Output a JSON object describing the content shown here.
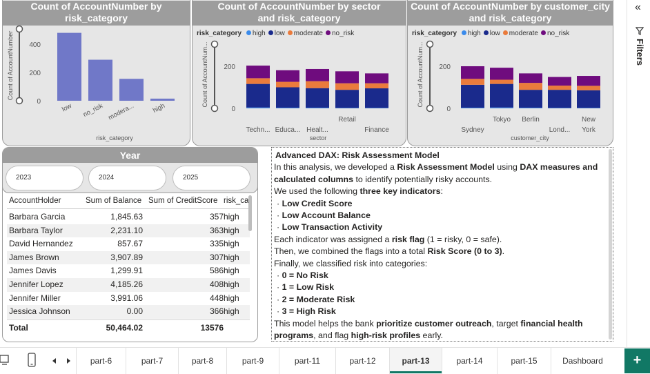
{
  "charts": {
    "risk": {
      "title": "Count of AccountNumber by risk_category",
      "ylabel": "Count of AccountNumber",
      "xlabel": "risk_category",
      "ticks": [
        "400",
        "200",
        "0"
      ],
      "categories": [
        "low",
        "no_risk",
        "modera...",
        "high"
      ]
    },
    "sector": {
      "title": "Count of AccountNumber by sector and risk_category",
      "legend_title": "risk_category",
      "ylabel": "Count of AccountNum...",
      "xlabel": "sector",
      "ticks": [
        "200",
        "0"
      ],
      "categories": [
        "Techn...",
        "Educa...",
        "Healt...",
        "Retail",
        "Finance"
      ]
    },
    "city": {
      "title": "Count of AccountNumber by customer_city and risk_category",
      "legend_title": "risk_category",
      "ylabel": "Count of AccountNum...",
      "xlabel": "customer_city",
      "ticks": [
        "200",
        "0"
      ],
      "categories": [
        "Sydney",
        "Tokyo",
        "Berlin",
        "Lond...",
        "New York"
      ],
      "cat_lines": [
        [
          "",
          "Sydney"
        ],
        [
          "Tokyo",
          ""
        ],
        [
          "Berlin",
          ""
        ],
        [
          "",
          "Lond..."
        ],
        [
          "New",
          "York"
        ]
      ]
    }
  },
  "legend": [
    {
      "label": "high",
      "color": "#3b8beb"
    },
    {
      "label": "low",
      "color": "#1a2a8c"
    },
    {
      "label": "moderate",
      "color": "#ea7b3c"
    },
    {
      "label": "no_risk",
      "color": "#6f0c7e"
    }
  ],
  "chart_data": [
    {
      "type": "bar",
      "title": "Count of AccountNumber by risk_category",
      "xlabel": "risk_category",
      "ylabel": "Count of AccountNumber",
      "categories": [
        "low",
        "no_risk",
        "modera...",
        "high"
      ],
      "values": [
        480,
        290,
        155,
        15
      ],
      "ylim": [
        0,
        500
      ],
      "color": "#7078c8"
    },
    {
      "type": "bar",
      "stacked": true,
      "title": "Count of AccountNumber by sector and risk_category",
      "xlabel": "sector",
      "ylabel": "Count of AccountNum...",
      "categories": [
        "Techn...",
        "Educa...",
        "Healt...",
        "Retail",
        "Finance"
      ],
      "ylim": [
        0,
        300
      ],
      "series": [
        {
          "name": "high",
          "values": [
            4,
            3,
            3,
            2,
            2
          ]
        },
        {
          "name": "low",
          "values": [
            112,
            97,
            93,
            86,
            93
          ]
        },
        {
          "name": "moderate",
          "values": [
            27,
            26,
            33,
            31,
            24
          ]
        },
        {
          "name": "no_risk",
          "values": [
            60,
            55,
            58,
            57,
            47
          ]
        }
      ]
    },
    {
      "type": "bar",
      "stacked": true,
      "title": "Count of AccountNumber by customer_city and risk_category",
      "xlabel": "customer_city",
      "ylabel": "Count of AccountNum...",
      "categories": [
        "Sydney",
        "Tokyo",
        "Berlin",
        "Lond...",
        "New York"
      ],
      "ylim": [
        0,
        300
      ],
      "series": [
        {
          "name": "high",
          "values": [
            3,
            4,
            3,
            2,
            2
          ]
        },
        {
          "name": "low",
          "values": [
            109,
            112,
            85,
            86,
            84
          ]
        },
        {
          "name": "moderate",
          "values": [
            28,
            20,
            33,
            20,
            21
          ]
        },
        {
          "name": "no_risk",
          "values": [
            60,
            57,
            45,
            41,
            47
          ]
        }
      ]
    }
  ],
  "slicer": {
    "title": "Year",
    "options": [
      "2023",
      "2024",
      "2025"
    ]
  },
  "table": {
    "headers": [
      "AccountHolder",
      "Sum of Balance",
      "Sum of CreditScore",
      "risk_ca"
    ],
    "rows": [
      [
        "Barbara Garcia",
        "1,845.63",
        "357",
        "high"
      ],
      [
        "Barbara Taylor",
        "2,231.10",
        "363",
        "high"
      ],
      [
        "David Hernandez",
        "857.67",
        "335",
        "high"
      ],
      [
        "James Brown",
        "3,907.89",
        "307",
        "high"
      ],
      [
        "James Davis",
        "1,299.91",
        "586",
        "high"
      ],
      [
        "Jennifer Lopez",
        "4,185.26",
        "408",
        "high"
      ],
      [
        "Jennifer Miller",
        "3,991.06",
        "448",
        "high"
      ],
      [
        "Jessica Johnson",
        "0.00",
        "366",
        "high"
      ]
    ],
    "total": [
      "Total",
      "50,464.02",
      "13576",
      ""
    ]
  },
  "textbox": {
    "title": "Advanced DAX: Risk Assessment Model",
    "lines": [
      [
        {
          "t": "In this analysis, we developed a "
        },
        {
          "t": "Risk Assessment Model",
          "b": true
        },
        {
          "t": " using "
        },
        {
          "t": "DAX measures and",
          "b": true
        }
      ],
      [
        {
          "t": "calculated columns",
          "b": true
        },
        {
          "t": " to identify potentially risky accounts."
        }
      ],
      [
        {
          "t": "We used the following "
        },
        {
          "t": "three key indicators",
          "b": true
        },
        {
          "t": ":"
        }
      ],
      [
        {
          "t": "· "
        },
        {
          "t": "Low Credit Score",
          "b": true
        }
      ],
      [
        {
          "t": "· "
        },
        {
          "t": "Low Account Balance",
          "b": true
        }
      ],
      [
        {
          "t": "· "
        },
        {
          "t": "Low Transaction Activity",
          "b": true
        }
      ],
      [
        {
          "t": "Each indicator was assigned a "
        },
        {
          "t": "risk flag",
          "b": true
        },
        {
          "t": " (1 = risky, 0 = safe)."
        }
      ],
      [
        {
          "t": "Then, we combined the flags into a total "
        },
        {
          "t": "Risk Score (0 to 3)",
          "b": true
        },
        {
          "t": "."
        }
      ],
      [
        {
          "t": "Finally, we classified risk into categories:"
        }
      ],
      [
        {
          "t": "· "
        },
        {
          "t": "0 = No Risk",
          "b": true
        }
      ],
      [
        {
          "t": "· "
        },
        {
          "t": "1 = Low Risk",
          "b": true
        }
      ],
      [
        {
          "t": "· "
        },
        {
          "t": "2 = Moderate Risk",
          "b": true
        }
      ],
      [
        {
          "t": "· "
        },
        {
          "t": "3 = High Risk",
          "b": true
        }
      ],
      [
        {
          "t": "This model helps the bank "
        },
        {
          "t": "prioritize customer outreach",
          "b": true
        },
        {
          "t": ", target "
        },
        {
          "t": "financial health",
          "b": true
        }
      ],
      [
        {
          "t": "programs",
          "b": true
        },
        {
          "t": ", and flag "
        },
        {
          "t": "high-risk profiles",
          "b": true
        },
        {
          "t": " early."
        }
      ]
    ]
  },
  "side_panel": {
    "collapse_glyph": "«",
    "label": "Filters"
  },
  "tabs": [
    "part-6",
    "part-7",
    "part-8",
    "part-9",
    "part-11",
    "part-12",
    "part-13",
    "part-14",
    "part-15",
    "Dashboard"
  ],
  "active_tab": "part-13",
  "add_page_label": "+"
}
